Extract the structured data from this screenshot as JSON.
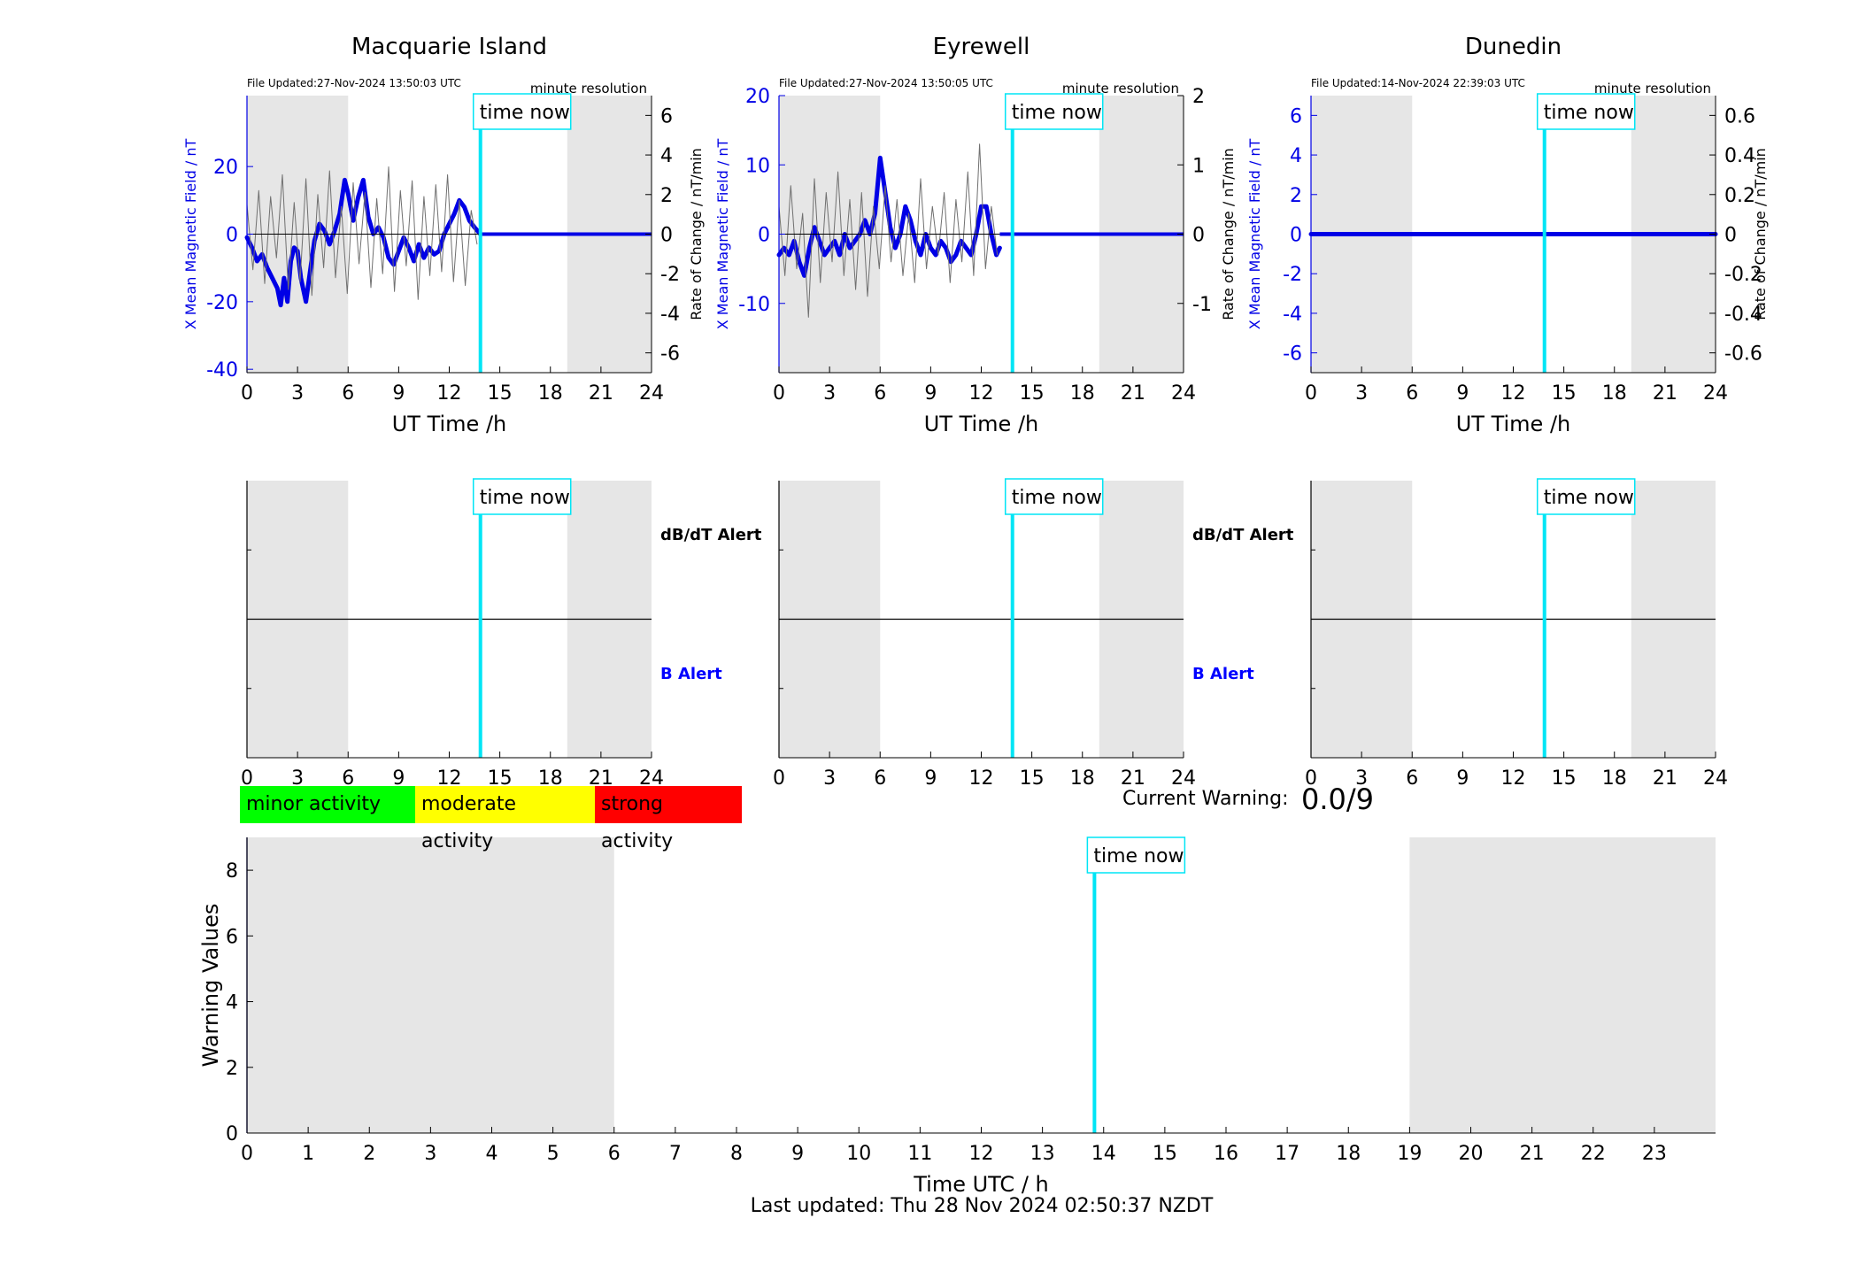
{
  "colors": {
    "night_shade": "#e6e6e6",
    "now_line": "#00e5f5",
    "field": "#0000e6",
    "rate": "#707070",
    "minor": "#00ff00",
    "moderate": "#ffff00",
    "strong": "#ff0000"
  },
  "time_now_label": "time now",
  "chart_data": [
    {
      "type": "line",
      "title": "Macquarie Island",
      "file_updated": "File Updated:27-Nov-2024 13:50:03 UTC",
      "resolution": "minute resolution",
      "xlabel": "UT Time /h",
      "ylabel": "X Mean Magnetic Field / nT",
      "ylabel_right": "Rate of Change / nT/min",
      "x_ticks": [
        0,
        3,
        6,
        9,
        12,
        15,
        18,
        21,
        24
      ],
      "xlim": [
        0,
        24
      ],
      "ylim": [
        -41,
        41
      ],
      "y_ticks": [
        -40,
        -20,
        0,
        20
      ],
      "ylim_right": [
        -7,
        7
      ],
      "y_ticks_right": [
        -6,
        -4,
        -2,
        0,
        2,
        4,
        6
      ],
      "night_shade": [
        [
          0,
          6
        ],
        [
          19,
          24
        ]
      ],
      "time_now": 13.85,
      "data_end": 13.85,
      "series": [
        {
          "axis": "left",
          "x": [
            0,
            0.3,
            0.6,
            0.9,
            1.2,
            1.5,
            1.8,
            2.0,
            2.2,
            2.4,
            2.6,
            2.8,
            3.0,
            3.2,
            3.5,
            3.8,
            4.0,
            4.3,
            4.6,
            4.9,
            5.2,
            5.5,
            5.8,
            6.0,
            6.3,
            6.6,
            6.9,
            7.2,
            7.5,
            7.8,
            8.1,
            8.4,
            8.7,
            9.0,
            9.3,
            9.6,
            9.9,
            10.2,
            10.5,
            10.8,
            11.1,
            11.4,
            11.7,
            12.0,
            12.3,
            12.6,
            12.9,
            13.2,
            13.5,
            13.85
          ],
          "values": [
            -1,
            -4,
            -8,
            -6,
            -10,
            -13,
            -16,
            -21,
            -13,
            -20,
            -8,
            -4,
            -5,
            -13,
            -20,
            -9,
            -2,
            3,
            1,
            -3,
            1,
            6,
            16,
            12,
            4,
            11,
            16,
            5,
            0,
            2,
            -1,
            -7,
            -9,
            -5,
            -1,
            -4,
            -8,
            -3,
            -7,
            -4,
            -6,
            -5,
            0,
            3,
            6,
            10,
            8,
            4,
            2,
            0
          ]
        },
        {
          "axis": "right",
          "x": [
            0,
            0.35,
            0.7,
            1.05,
            1.4,
            1.75,
            2.1,
            2.45,
            2.8,
            3.15,
            3.5,
            3.85,
            4.2,
            4.55,
            4.9,
            5.25,
            5.6,
            5.95,
            6.3,
            6.65,
            7.0,
            7.35,
            7.7,
            8.05,
            8.4,
            8.75,
            9.1,
            9.45,
            9.8,
            10.15,
            10.5,
            10.85,
            11.2,
            11.55,
            11.9,
            12.25,
            12.6,
            12.95,
            13.3,
            13.65
          ],
          "values": [
            1.5,
            -1.8,
            2.2,
            -2.5,
            1.9,
            -1.2,
            3.0,
            -2.8,
            1.6,
            -2.4,
            2.8,
            -3.1,
            2.0,
            -1.7,
            3.2,
            -2.2,
            1.4,
            -3.0,
            2.6,
            -1.5,
            2.1,
            -2.7,
            1.8,
            -2.0,
            3.4,
            -2.9,
            2.2,
            -1.6,
            2.7,
            -3.3,
            1.9,
            -2.1,
            2.5,
            -1.9,
            3.0,
            -2.4,
            1.7,
            -2.6,
            1.2,
            -0.5
          ]
        }
      ]
    },
    {
      "type": "line",
      "title": "Eyrewell",
      "file_updated": "File Updated:27-Nov-2024 13:50:05 UTC",
      "resolution": "minute resolution",
      "xlabel": "UT Time /h",
      "ylabel": "X Mean Magnetic Field / nT",
      "ylabel_right": "Rate of Change / nT/min",
      "x_ticks": [
        0,
        3,
        6,
        9,
        12,
        15,
        18,
        21,
        24
      ],
      "xlim": [
        0,
        24
      ],
      "ylim": [
        -20,
        20
      ],
      "y_ticks": [
        -10,
        0,
        10,
        20
      ],
      "ylim_right": [
        -2,
        2
      ],
      "y_ticks_right": [
        -1,
        0,
        1,
        2
      ],
      "night_shade": [
        [
          0,
          6
        ],
        [
          19,
          24
        ]
      ],
      "time_now": 13.85,
      "data_end": 13.1,
      "series": [
        {
          "axis": "left",
          "x": [
            0,
            0.3,
            0.6,
            0.9,
            1.2,
            1.5,
            1.8,
            2.1,
            2.4,
            2.7,
            3.0,
            3.3,
            3.6,
            3.9,
            4.2,
            4.5,
            4.8,
            5.1,
            5.4,
            5.7,
            6.0,
            6.3,
            6.6,
            6.9,
            7.2,
            7.5,
            7.8,
            8.1,
            8.4,
            8.7,
            9.0,
            9.3,
            9.6,
            9.9,
            10.2,
            10.5,
            10.8,
            11.1,
            11.4,
            11.7,
            12.0,
            12.3,
            12.6,
            12.9,
            13.1
          ],
          "values": [
            -3,
            -2,
            -3,
            -1,
            -4,
            -6,
            -2,
            1,
            -1,
            -3,
            -2,
            -1,
            -3,
            0,
            -2,
            -1,
            0,
            2,
            0,
            3,
            11,
            6,
            1,
            -2,
            0,
            4,
            2,
            -1,
            -3,
            0,
            -2,
            -3,
            -1,
            -2,
            -4,
            -3,
            -1,
            -2,
            -3,
            0,
            4,
            4,
            0,
            -3,
            -2
          ]
        },
        {
          "axis": "right",
          "x": [
            0,
            0.35,
            0.7,
            1.05,
            1.4,
            1.75,
            2.1,
            2.45,
            2.8,
            3.15,
            3.5,
            3.85,
            4.2,
            4.55,
            4.9,
            5.25,
            5.6,
            5.95,
            6.3,
            6.65,
            7.0,
            7.35,
            7.7,
            8.05,
            8.4,
            8.75,
            9.1,
            9.45,
            9.8,
            10.15,
            10.5,
            10.85,
            11.2,
            11.55,
            11.9,
            12.25,
            12.6,
            12.95
          ],
          "values": [
            0.4,
            -0.6,
            0.7,
            -0.5,
            0.3,
            -1.2,
            0.8,
            -0.7,
            0.6,
            -0.4,
            0.9,
            -0.6,
            0.5,
            -0.8,
            0.6,
            -0.9,
            0.4,
            -0.5,
            0.7,
            -0.4,
            0.5,
            -0.6,
            0.3,
            -0.7,
            0.8,
            -0.5,
            0.4,
            -0.3,
            0.6,
            -0.7,
            0.5,
            -0.4,
            0.9,
            -0.6,
            1.3,
            -0.5,
            0.4,
            -0.3
          ]
        }
      ]
    },
    {
      "type": "line",
      "title": "Dunedin",
      "file_updated": "File Updated:14-Nov-2024 22:39:03 UTC",
      "resolution": "minute resolution",
      "xlabel": "UT Time /h",
      "ylabel": "X Mean Magnetic Field / nT",
      "ylabel_right": "Rate of Change / nT/min",
      "x_ticks": [
        0,
        3,
        6,
        9,
        12,
        15,
        18,
        21,
        24
      ],
      "xlim": [
        0,
        24
      ],
      "ylim": [
        -7,
        7
      ],
      "y_ticks": [
        -6,
        -4,
        -2,
        0,
        2,
        4,
        6
      ],
      "ylim_right": [
        -0.7,
        0.7
      ],
      "y_ticks_right": [
        -0.6,
        -0.4,
        -0.2,
        0,
        0.2,
        0.4,
        0.6
      ],
      "night_shade": [
        [
          0,
          6
        ],
        [
          19,
          24
        ]
      ],
      "time_now": 13.85,
      "data_end": 0,
      "series": [
        {
          "axis": "left",
          "x": [
            0,
            24
          ],
          "values": [
            0,
            0
          ]
        }
      ]
    },
    {
      "type": "line",
      "title": "",
      "label_top": "dB/dT Alert",
      "label_bottom": "B Alert",
      "x_ticks": [
        0,
        3,
        6,
        9,
        12,
        15,
        18,
        21,
        24
      ],
      "xlim": [
        0,
        24
      ],
      "night_shade": [
        [
          0,
          6
        ],
        [
          19,
          24
        ]
      ],
      "time_now": 13.85
    },
    {
      "type": "line",
      "title": "",
      "label_top": "dB/dT Alert",
      "label_bottom": "B Alert",
      "x_ticks": [
        0,
        3,
        6,
        9,
        12,
        15,
        18,
        21,
        24
      ],
      "xlim": [
        0,
        24
      ],
      "night_shade": [
        [
          0,
          6
        ],
        [
          19,
          24
        ]
      ],
      "time_now": 13.85
    },
    {
      "type": "line",
      "title": "",
      "x_ticks": [
        0,
        3,
        6,
        9,
        12,
        15,
        18,
        21,
        24
      ],
      "xlim": [
        0,
        24
      ],
      "night_shade": [
        [
          0,
          6
        ],
        [
          19,
          24
        ]
      ],
      "time_now": 13.85
    },
    {
      "type": "bar",
      "title": "",
      "xlabel": "Time UTC / h",
      "ylabel": "Warning Values",
      "x_ticks": [
        0,
        1,
        2,
        3,
        4,
        5,
        6,
        7,
        8,
        9,
        10,
        11,
        12,
        13,
        14,
        15,
        16,
        17,
        18,
        19,
        20,
        21,
        22,
        23
      ],
      "xlim": [
        0,
        24
      ],
      "ylim": [
        0,
        9
      ],
      "y_ticks": [
        0,
        2,
        4,
        6,
        8
      ],
      "night_shade": [
        [
          0,
          6
        ],
        [
          19,
          24
        ]
      ],
      "time_now": 13.85,
      "values": []
    }
  ],
  "legend": {
    "minor": "minor activity",
    "moderate": "moderate activity",
    "strong": "strong activity"
  },
  "current_warning": {
    "label": "Current Warning:",
    "value": "0.0/9"
  },
  "last_updated": "Last updated: Thu 28 Nov 2024 02:50:37 NZDT"
}
